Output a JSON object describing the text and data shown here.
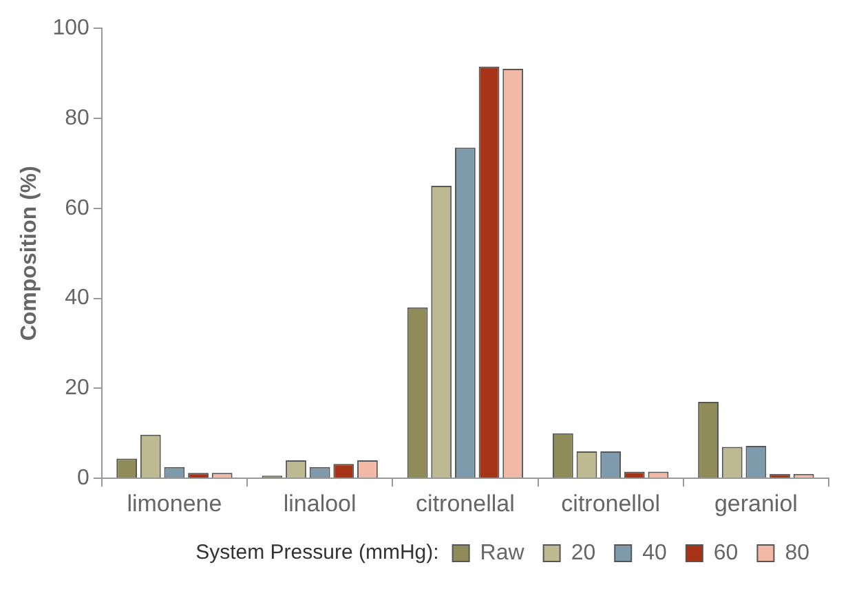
{
  "chart_data": {
    "type": "bar",
    "ylabel": "Composition (%)",
    "legend_title": "System Pressure (mmHg):",
    "categories": [
      "limonene",
      "linalool",
      "citronellal",
      "citronellol",
      "geraniol"
    ],
    "series": [
      {
        "name": "Raw",
        "color": "#8f8c5a",
        "values": [
          4.4,
          0.6,
          38,
          10,
          17
        ]
      },
      {
        "name": "20",
        "color": "#bdb990",
        "values": [
          9.7,
          4,
          65,
          6,
          7
        ]
      },
      {
        "name": "40",
        "color": "#7f9aab",
        "values": [
          2.5,
          2.5,
          73.5,
          6,
          7.2
        ]
      },
      {
        "name": "60",
        "color": "#a83418",
        "values": [
          1.2,
          3.2,
          91.5,
          1.5,
          1
        ]
      },
      {
        "name": "80",
        "color": "#f2b9a6",
        "values": [
          1.2,
          4,
          91,
          1.5,
          1
        ]
      }
    ],
    "ylim": [
      0,
      100
    ],
    "yticks": [
      0,
      20,
      40,
      60,
      80,
      100
    ],
    "grid": false,
    "legend": "bottom"
  }
}
